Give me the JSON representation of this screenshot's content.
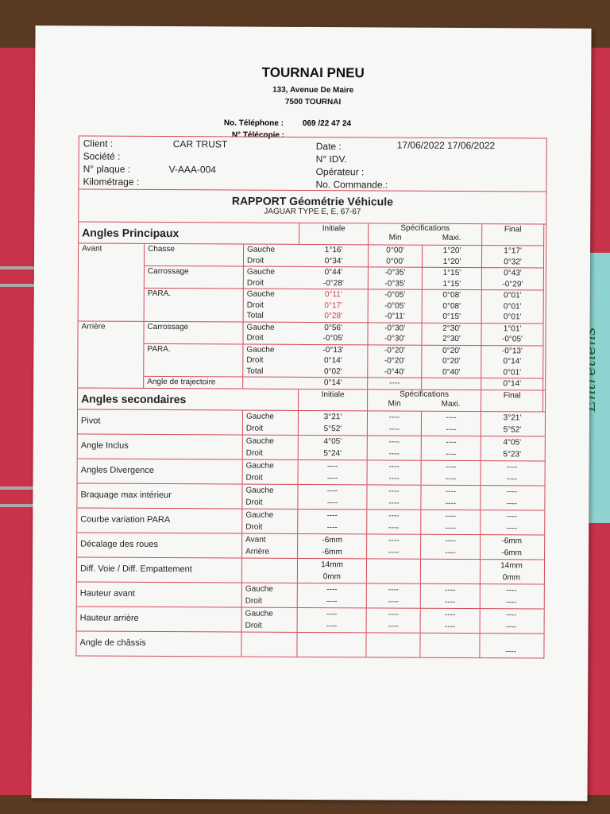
{
  "header": {
    "company": "TOURNAI PNEU",
    "address": "133, Avenue De Maire",
    "city": "7500  TOURNAI",
    "tel_label": "No. Téléphone :",
    "tel": "069 /22 47 24",
    "fax_label": "N° Télécopie :"
  },
  "info": {
    "client_label": "Client :",
    "client": "CAR TRUST",
    "societe_label": "Société :",
    "plaque_label": "N° plaque :",
    "plaque": "V-AAA-004",
    "km_label": "Kilométrage :",
    "date_label": "Date :",
    "date": "17/06/2022  17/06/2022",
    "idv_label": "N° IDV.",
    "operateur_label": "Opérateur :",
    "commande_label": "No. Commande.:"
  },
  "report": {
    "title": "RAPPORT Géométrie Véhicule",
    "vehicle": "JAGUAR TYPE E, E, 67-67"
  },
  "principal": {
    "title": "Angles Principaux",
    "col_initiale": "Initiale",
    "col_spec": "Spécifications",
    "col_min": "Min",
    "col_max": "Maxi.",
    "col_final": "Final",
    "rows": [
      [
        "Avant",
        "Chasse",
        "Gauche",
        "1°16'",
        "0°00'",
        "1°20'",
        "1°17'",
        false
      ],
      [
        "",
        "",
        "Droit",
        "0°34'",
        "0°00'",
        "1°20'",
        "0°32'",
        false
      ],
      [
        "",
        "Carrossage",
        "Gauche",
        "0°44'",
        "-0°35'",
        "1°15'",
        "0°43'",
        false
      ],
      [
        "",
        "",
        "Droit",
        "-0°28'",
        "-0°35'",
        "1°15'",
        "-0°29'",
        false
      ],
      [
        "",
        "PARA.",
        "Gauche",
        "0°11'",
        "-0°05'",
        "0°08'",
        "0°01'",
        true
      ],
      [
        "",
        "",
        "Droit",
        "0°17'",
        "-0°05'",
        "0°08'",
        "0°01'",
        true
      ],
      [
        "",
        "",
        "Total",
        "0°28'",
        "-0°11'",
        "0°15'",
        "0°01'",
        true
      ],
      [
        "Arrière",
        "Carrossage",
        "Gauche",
        "0°56'",
        "-0°30'",
        "2°30'",
        "1°01'",
        false
      ],
      [
        "",
        "",
        "Droit",
        "-0°05'",
        "-0°30'",
        "2°30'",
        "-0°05'",
        false
      ],
      [
        "",
        "PARA.",
        "Gauche",
        "-0°13'",
        "-0°20'",
        "0°20'",
        "-0°13'",
        false
      ],
      [
        "",
        "",
        "Droit",
        "0°14'",
        "-0°20'",
        "0°20'",
        "0°14'",
        false
      ],
      [
        "",
        "",
        "Total",
        "0°02'",
        "-0°40'",
        "0°40'",
        "0°01'",
        false
      ],
      [
        "",
        "Angle de trajectoire",
        "",
        "0°14'",
        "----",
        "",
        "0°14'",
        false
      ]
    ]
  },
  "secondary": {
    "title": "Angles secondaires",
    "col_initiale": "Initiale",
    "col_spec": "Spécifications",
    "col_min": "Min",
    "col_max": "Maxi.",
    "col_final": "Final",
    "rows": [
      {
        "label": "Pivot",
        "sides": [
          "Gauche",
          "Droit"
        ],
        "init": [
          "3°21'",
          "5°52'"
        ],
        "min": [
          "----",
          "----"
        ],
        "max": [
          "----",
          "----"
        ],
        "final": [
          "3°21'",
          "5°52'"
        ]
      },
      {
        "label": "Angle Inclus",
        "sides": [
          "Gauche",
          "Droit"
        ],
        "init": [
          "4°05'",
          "5°24'"
        ],
        "min": [
          "----",
          "----"
        ],
        "max": [
          "----",
          "----"
        ],
        "final": [
          "4°05'",
          "5°23'"
        ]
      },
      {
        "label": "Angles Divergence",
        "sides": [
          "Gauche",
          "Droit"
        ],
        "init": [
          "----",
          "----"
        ],
        "min": [
          "----",
          "----"
        ],
        "max": [
          "----",
          "----"
        ],
        "final": [
          "----",
          "----"
        ]
      },
      {
        "label": "Braquage max intérieur",
        "sides": [
          "Gauche",
          "Droit"
        ],
        "init": [
          "----",
          "----"
        ],
        "min": [
          "----",
          "----"
        ],
        "max": [
          "----",
          "----"
        ],
        "final": [
          "----",
          "----"
        ]
      },
      {
        "label": "Courbe variation PARA",
        "sides": [
          "Gauche",
          "Droit"
        ],
        "init": [
          "----",
          "----"
        ],
        "min": [
          "----",
          "----"
        ],
        "max": [
          "----",
          "----"
        ],
        "final": [
          "----",
          "----"
        ]
      },
      {
        "label": "Décalage des roues",
        "sides": [
          "Avant",
          "Arrière"
        ],
        "init": [
          "-6mm",
          "-6mm"
        ],
        "min": [
          "----",
          "----"
        ],
        "max": [
          "----",
          "----"
        ],
        "final": [
          "-6mm",
          "-6mm"
        ]
      },
      {
        "label": "Diff. Voie / Diff. Empattement",
        "sides": [
          "",
          ""
        ],
        "init": [
          "14mm",
          "0mm"
        ],
        "min": [
          "",
          ""
        ],
        "max": [
          "",
          ""
        ],
        "final": [
          "14mm",
          "0mm"
        ]
      },
      {
        "label": "Hauteur avant",
        "sides": [
          "Gauche",
          "Droit"
        ],
        "init": [
          "----",
          "----"
        ],
        "min": [
          "----",
          "----"
        ],
        "max": [
          "----",
          "----"
        ],
        "final": [
          "----",
          "----"
        ]
      },
      {
        "label": "Hauteur arrière",
        "sides": [
          "Gauche",
          "Droit"
        ],
        "init": [
          "----",
          "----"
        ],
        "min": [
          "----",
          "----"
        ],
        "max": [
          "----",
          "----"
        ],
        "final": [
          "----",
          "----"
        ]
      },
      {
        "label": "Angle de châssis",
        "sides": [
          "",
          ""
        ],
        "init": [
          "",
          ""
        ],
        "min": [
          "",
          ""
        ],
        "max": [
          "",
          ""
        ],
        "final": [
          "",
          "----"
        ]
      }
    ]
  },
  "binder_tab": {
    "label": "Entretiens"
  },
  "colors": {
    "table_border": "#d34a5a",
    "out_of_spec": "#d84050",
    "binder": "#c8324a",
    "tab": "#8fd3d0"
  }
}
